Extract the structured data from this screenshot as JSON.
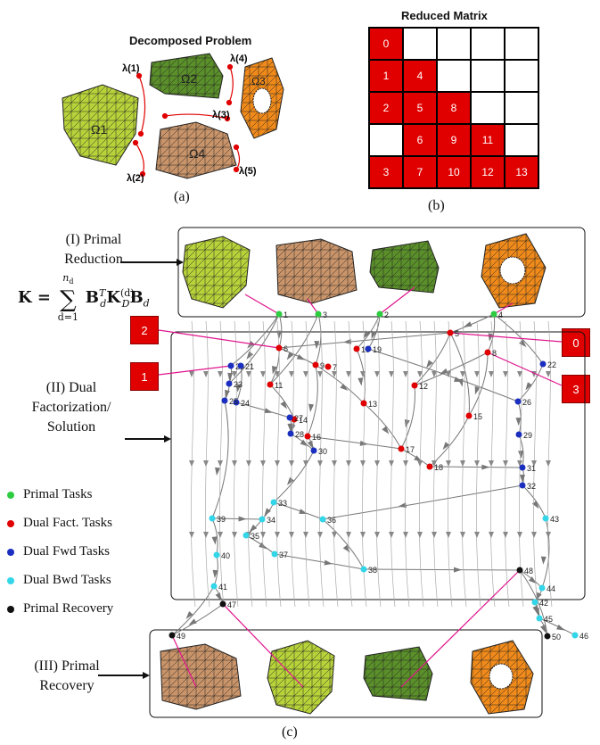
{
  "panel_a": {
    "title": "Decomposed Problem",
    "caption": "(a)",
    "subdomains": [
      "Ω1",
      "Ω2",
      "Ω3",
      "Ω4"
    ],
    "multipliers": [
      "λ(1)",
      "λ(2)",
      "λ(3)",
      "λ(4)",
      "λ(5)"
    ]
  },
  "panel_b": {
    "title": "Reduced Matrix",
    "caption": "(b)",
    "cells": [
      [
        "0",
        "",
        "",
        "",
        ""
      ],
      [
        "1",
        "4",
        "",
        "",
        ""
      ],
      [
        "2",
        "5",
        "8",
        "",
        ""
      ],
      [
        "",
        "6",
        "9",
        "11",
        ""
      ],
      [
        "3",
        "7",
        "10",
        "12",
        "13"
      ]
    ]
  },
  "panel_c": {
    "caption": "(c)",
    "stage1_label": "(I) Primal Reduction",
    "stage2_label": "(II) Dual Factorization/ Solution",
    "stage3_label": "(III) Primal Recovery",
    "formula": "K = Σ_{d=1}^{n_d} B_d^T K_D^(d) B_d",
    "formula_parts": {
      "lhs": "K =",
      "sum": "∑",
      "upper": "n",
      "upper_sub": "d",
      "lower": "d=1",
      "body": "B",
      "body_sup": "T",
      "body_sub": "d",
      "k": "K",
      "k_sup": "(d)",
      "k_sub": "D",
      "tail": "B",
      "tail_sub": "d"
    },
    "red_boxes": {
      "left_top": "2",
      "left_bottom": "1",
      "right_top": "0",
      "right_bottom": "3"
    },
    "legend": [
      {
        "label": "Primal Tasks",
        "color": "#2ecc40"
      },
      {
        "label": "Dual Fact. Tasks",
        "color": "#e00000"
      },
      {
        "label": "Dual Fwd Tasks",
        "color": "#1a2fbf"
      },
      {
        "label": "Dual Bwd Tasks",
        "color": "#33d6e8"
      },
      {
        "label": "Primal Recovery",
        "color": "#111111"
      }
    ],
    "task_nodes": [
      {
        "id": "1",
        "kind": "primal"
      },
      {
        "id": "2",
        "kind": "primal"
      },
      {
        "id": "3",
        "kind": "primal"
      },
      {
        "id": "4",
        "kind": "primal"
      },
      {
        "id": "5",
        "kind": "fact"
      },
      {
        "id": "6",
        "kind": "fact"
      },
      {
        "id": "7",
        "kind": "fact"
      },
      {
        "id": "8",
        "kind": "fact"
      },
      {
        "id": "9",
        "kind": "fact"
      },
      {
        "id": "10",
        "kind": "fact"
      },
      {
        "id": "11",
        "kind": "fact"
      },
      {
        "id": "12",
        "kind": "fact"
      },
      {
        "id": "13",
        "kind": "fact"
      },
      {
        "id": "14",
        "kind": "fact"
      },
      {
        "id": "15",
        "kind": "fact"
      },
      {
        "id": "16",
        "kind": "fact"
      },
      {
        "id": "17",
        "kind": "fact"
      },
      {
        "id": "18",
        "kind": "fact"
      },
      {
        "id": "19",
        "kind": "fwd"
      },
      {
        "id": "20",
        "kind": "fwd"
      },
      {
        "id": "21",
        "kind": "fwd"
      },
      {
        "id": "22",
        "kind": "fwd"
      },
      {
        "id": "23",
        "kind": "fwd"
      },
      {
        "id": "24",
        "kind": "fwd"
      },
      {
        "id": "25",
        "kind": "fwd"
      },
      {
        "id": "26",
        "kind": "fwd"
      },
      {
        "id": "27",
        "kind": "fwd"
      },
      {
        "id": "28",
        "kind": "fwd"
      },
      {
        "id": "29",
        "kind": "fwd"
      },
      {
        "id": "30",
        "kind": "fwd"
      },
      {
        "id": "31",
        "kind": "fwd"
      },
      {
        "id": "32",
        "kind": "fwd"
      },
      {
        "id": "33",
        "kind": "bwd"
      },
      {
        "id": "34",
        "kind": "bwd"
      },
      {
        "id": "35",
        "kind": "bwd"
      },
      {
        "id": "36",
        "kind": "bwd"
      },
      {
        "id": "37",
        "kind": "bwd"
      },
      {
        "id": "38",
        "kind": "bwd"
      },
      {
        "id": "39",
        "kind": "bwd"
      },
      {
        "id": "40",
        "kind": "bwd"
      },
      {
        "id": "41",
        "kind": "bwd"
      },
      {
        "id": "42",
        "kind": "bwd"
      },
      {
        "id": "43",
        "kind": "bwd"
      },
      {
        "id": "44",
        "kind": "bwd"
      },
      {
        "id": "45",
        "kind": "bwd"
      },
      {
        "id": "46",
        "kind": "bwd"
      },
      {
        "id": "47",
        "kind": "recovery"
      },
      {
        "id": "48",
        "kind": "recovery"
      },
      {
        "id": "49",
        "kind": "recovery"
      },
      {
        "id": "50",
        "kind": "recovery"
      }
    ]
  }
}
